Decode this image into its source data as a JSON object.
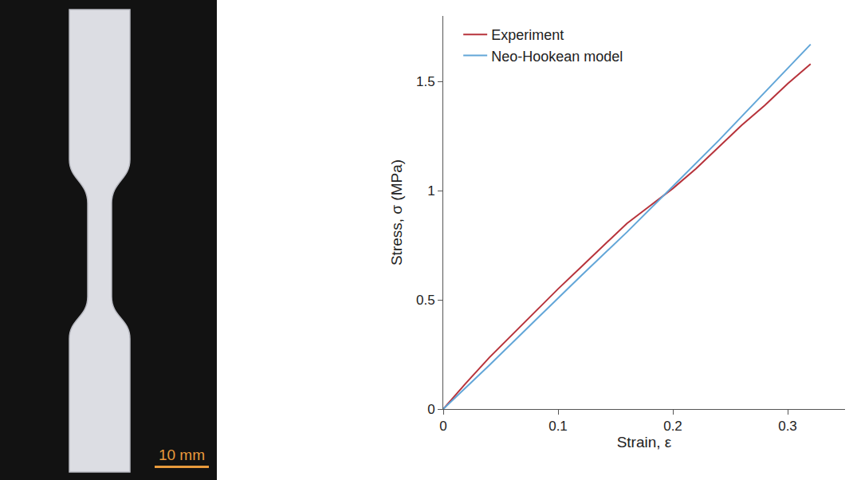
{
  "chart_data": {
    "type": "line",
    "x_label": "Strain, ε",
    "y_label": "Stress, σ (MPa)",
    "xlim": [
      0,
      0.35
    ],
    "xticks": [
      0,
      0.1,
      0.2,
      0.3
    ],
    "ylim": [
      0,
      1.8
    ],
    "yticks": [
      0,
      0.5,
      1,
      1.5
    ],
    "grid": false,
    "legend": "upper left",
    "series": [
      {
        "name": "Experiment",
        "color": "#b7333b",
        "x": [
          0,
          0.02,
          0.04,
          0.06,
          0.08,
          0.1,
          0.12,
          0.14,
          0.16,
          0.18,
          0.2,
          0.22,
          0.24,
          0.26,
          0.28,
          0.3,
          0.32
        ],
        "values": [
          0,
          0.12,
          0.235,
          0.34,
          0.445,
          0.55,
          0.65,
          0.75,
          0.85,
          0.93,
          1.01,
          1.1,
          1.2,
          1.3,
          1.39,
          1.49,
          1.58
        ]
      },
      {
        "name": "Neo-Hookean model",
        "color": "#62a6d8",
        "x": [
          0,
          0.04,
          0.08,
          0.12,
          0.16,
          0.2,
          0.24,
          0.28,
          0.32
        ],
        "values": [
          0,
          0.2,
          0.405,
          0.61,
          0.81,
          1.02,
          1.23,
          1.45,
          1.67
        ]
      }
    ]
  },
  "photo": {
    "scale_bar": "10 mm"
  }
}
